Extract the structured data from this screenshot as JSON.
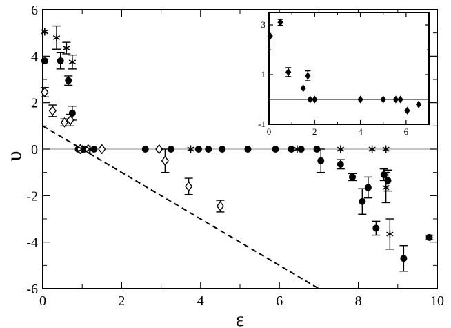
{
  "chart_data": [
    {
      "type": "scatter",
      "xlabel": "ε",
      "ylabel": "υ",
      "xlim": [
        0,
        10
      ],
      "ylim": [
        -6,
        6
      ],
      "xticks": [
        0,
        2,
        4,
        6,
        8,
        10
      ],
      "yticks": [
        -6,
        -4,
        -2,
        0,
        2,
        4,
        6
      ],
      "x_tick_labels": [
        "0",
        "2",
        "4",
        "6",
        "8",
        "10"
      ],
      "y_tick_labels": [
        "-6",
        "-4",
        "-2",
        "0",
        "2",
        "4",
        "6"
      ],
      "reference_lines": [
        {
          "kind": "horizontal",
          "style": "solid",
          "color": "#888888",
          "points": [
            [
              0,
              0
            ],
            [
              10,
              0
            ]
          ]
        },
        {
          "kind": "dashed",
          "style": "dashed",
          "color": "#000000",
          "points": [
            [
              0,
              1
            ],
            [
              7,
              -6
            ]
          ]
        }
      ],
      "series": [
        {
          "marker": "filled-circle",
          "points": [
            {
              "x": 0.05,
              "y": 3.8
            },
            {
              "x": 0.45,
              "y": 3.8,
              "err": 0.35
            },
            {
              "x": 0.65,
              "y": 2.95,
              "err": 0.2
            },
            {
              "x": 0.75,
              "y": 1.55,
              "err": 0.3
            },
            {
              "x": 0.9,
              "y": 0
            },
            {
              "x": 1.05,
              "y": 0
            },
            {
              "x": 1.3,
              "y": 0
            },
            {
              "x": 2.6,
              "y": 0
            },
            {
              "x": 3.25,
              "y": 0
            },
            {
              "x": 3.95,
              "y": 0
            },
            {
              "x": 4.2,
              "y": 0
            },
            {
              "x": 4.55,
              "y": 0
            },
            {
              "x": 5.2,
              "y": 0
            },
            {
              "x": 5.9,
              "y": 0
            },
            {
              "x": 6.3,
              "y": 0
            },
            {
              "x": 6.55,
              "y": 0
            },
            {
              "x": 6.95,
              "y": 0
            },
            {
              "x": 7.05,
              "y": -0.5,
              "err": 0.5
            },
            {
              "x": 7.55,
              "y": -0.65,
              "err": 0.2
            },
            {
              "x": 7.85,
              "y": -1.2,
              "err": 0.15
            },
            {
              "x": 8.1,
              "y": -2.25,
              "err": 0.55
            },
            {
              "x": 8.25,
              "y": -1.65,
              "err": 0.45
            },
            {
              "x": 8.45,
              "y": -3.4,
              "err": 0.3
            },
            {
              "x": 8.65,
              "y": -1.1,
              "err": 0.25
            },
            {
              "x": 8.75,
              "y": -1.35,
              "err": 0.45
            },
            {
              "x": 9.15,
              "y": -4.7,
              "err": 0.55
            },
            {
              "x": 9.8,
              "y": -3.8,
              "err": 0.1
            }
          ]
        },
        {
          "marker": "open-diamond",
          "points": [
            {
              "x": 0.05,
              "y": 2.45,
              "err": 0.2
            },
            {
              "x": 0.25,
              "y": 1.65,
              "err": 0.25
            },
            {
              "x": 0.55,
              "y": 1.15,
              "err": 0.15
            },
            {
              "x": 0.7,
              "y": 1.25,
              "err": 0.25
            },
            {
              "x": 0.95,
              "y": 0
            },
            {
              "x": 1.15,
              "y": 0
            },
            {
              "x": 1.5,
              "y": 0
            },
            {
              "x": 2.95,
              "y": 0
            },
            {
              "x": 3.1,
              "y": -0.5,
              "err": 0.5
            },
            {
              "x": 3.7,
              "y": -1.6,
              "err": 0.35
            },
            {
              "x": 4.5,
              "y": -2.45,
              "err": 0.25
            }
          ]
        },
        {
          "marker": "star",
          "points": [
            {
              "x": 0.05,
              "y": 5.05
            },
            {
              "x": 0.35,
              "y": 4.8,
              "err": 0.5
            },
            {
              "x": 0.6,
              "y": 4.35,
              "err": 0.25
            },
            {
              "x": 0.75,
              "y": 3.75,
              "err": 0.3
            },
            {
              "x": 1.0,
              "y": 0
            },
            {
              "x": 1.2,
              "y": 0
            },
            {
              "x": 3.75,
              "y": 0
            },
            {
              "x": 6.45,
              "y": 0
            },
            {
              "x": 7.55,
              "y": 0
            },
            {
              "x": 8.35,
              "y": 0
            },
            {
              "x": 8.7,
              "y": 0
            },
            {
              "x": 8.7,
              "y": -1.65,
              "err": 0.65
            },
            {
              "x": 8.8,
              "y": -3.65,
              "err": 0.65
            }
          ]
        }
      ]
    },
    {
      "type": "scatter",
      "xlim": [
        0,
        7
      ],
      "ylim": [
        -1,
        3.5
      ],
      "xticks": [
        0,
        2,
        4,
        6
      ],
      "yticks": [
        -1,
        1,
        3
      ],
      "x_tick_labels": [
        "0",
        "2",
        "4",
        "6"
      ],
      "y_tick_labels": [
        "-1",
        "1",
        "3"
      ],
      "reference_lines": [
        {
          "kind": "horizontal",
          "style": "solid",
          "color": "#000000",
          "points": [
            [
              0,
              0
            ],
            [
              7,
              0
            ]
          ]
        }
      ],
      "series": [
        {
          "marker": "filled-diamond",
          "points": [
            {
              "x": 0.05,
              "y": 2.55
            },
            {
              "x": 0.5,
              "y": 3.1,
              "err": 0.12
            },
            {
              "x": 0.85,
              "y": 1.1,
              "err": 0.18
            },
            {
              "x": 1.5,
              "y": 0.45
            },
            {
              "x": 1.7,
              "y": 0.95,
              "err": 0.2
            },
            {
              "x": 1.8,
              "y": 0
            },
            {
              "x": 2.0,
              "y": 0
            },
            {
              "x": 4.0,
              "y": 0
            },
            {
              "x": 5.0,
              "y": 0
            },
            {
              "x": 5.55,
              "y": 0
            },
            {
              "x": 5.75,
              "y": 0
            },
            {
              "x": 6.05,
              "y": -0.45
            },
            {
              "x": 6.55,
              "y": -0.2
            }
          ]
        }
      ]
    }
  ]
}
